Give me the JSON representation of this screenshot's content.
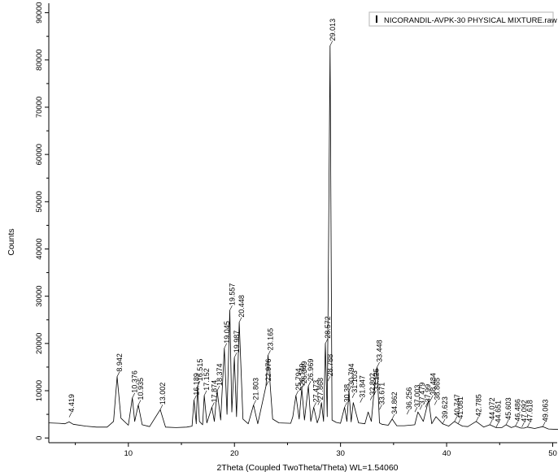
{
  "chart_data": {
    "type": "line",
    "title": "",
    "xlabel": "2Theta (Coupled TwoTheta/Theta) WL=1.54060",
    "ylabel": "Counts",
    "xlim": [
      2.5,
      50.5
    ],
    "ylim": [
      -1000,
      92000
    ],
    "xticks": [
      10,
      20,
      30,
      40,
      50
    ],
    "yticks": [
      0,
      10000,
      20000,
      30000,
      40000,
      50000,
      60000,
      70000,
      80000,
      90000
    ],
    "xtick_labels": [
      "10",
      "20",
      "30",
      "40",
      "50"
    ],
    "ytick_labels": [
      "0",
      "10000",
      "20000",
      "30000",
      "40000",
      "50000",
      "60000",
      "70000",
      "80000",
      "90000"
    ],
    "grid": false,
    "legend": {
      "position": "top-right",
      "entries": [
        "NICORANDIL-AVPK-30 PHYSICAL MIXTURE.raw"
      ]
    },
    "series": [
      {
        "name": "NICORANDIL-AVPK-30 PHYSICAL MIXTURE.raw",
        "x": [
          2.5,
          3.5,
          4.0,
          4.419,
          4.8,
          6.0,
          7.0,
          8.0,
          8.6,
          8.942,
          9.3,
          10.0,
          10.376,
          10.6,
          10.935,
          11.3,
          12.0,
          13.002,
          13.5,
          14.5,
          15.5,
          16.0,
          16.189,
          16.4,
          16.515,
          16.7,
          17.0,
          17.152,
          17.4,
          17.874,
          18.1,
          18.374,
          18.7,
          19.045,
          19.3,
          19.557,
          19.75,
          19.987,
          20.2,
          20.448,
          20.8,
          21.3,
          21.803,
          22.2,
          22.976,
          23.165,
          23.6,
          24.2,
          25.3,
          25.5,
          25.794,
          26.1,
          26.349,
          26.6,
          26.969,
          27.2,
          27.473,
          27.8,
          28.0,
          28.2,
          28.4,
          28.572,
          28.75,
          29.013,
          29.2,
          29.6,
          30.0,
          30.38,
          30.6,
          30.794,
          31.0,
          31.2,
          31.7,
          32.3,
          32.6,
          32.9,
          33.125,
          33.448,
          33.671,
          33.9,
          34.5,
          34.862,
          35.3,
          36.0,
          37.0,
          37.3,
          37.8,
          38.3,
          38.6,
          39.0,
          39.623,
          40.2,
          40.747,
          41.081,
          41.5,
          42.0,
          42.785,
          43.5,
          44.072,
          44.651,
          45.2,
          45.603,
          46.1,
          46.486,
          47.0,
          47.3,
          47.618,
          48.3,
          49.063,
          49.6,
          50.5
        ],
        "y": [
          3200,
          3100,
          3000,
          3400,
          2900,
          2500,
          2300,
          2300,
          3500,
          13000,
          4200,
          2700,
          8500,
          3500,
          7000,
          2800,
          2400,
          6000,
          2300,
          2200,
          2300,
          2500,
          8000,
          3000,
          11000,
          3500,
          2800,
          9000,
          3200,
          6500,
          3500,
          10000,
          3800,
          19000,
          5000,
          27000,
          5500,
          17000,
          4500,
          24500,
          4000,
          3000,
          7000,
          3000,
          11000,
          17500,
          4000,
          3200,
          3100,
          4500,
          9000,
          4000,
          10500,
          3800,
          11000,
          3500,
          6500,
          3200,
          4500,
          7500,
          3500,
          20000,
          4500,
          83000,
          3800,
          3300,
          3100,
          6500,
          3500,
          10000,
          3400,
          7500,
          3200,
          3000,
          5500,
          3500,
          9000,
          15000,
          3200,
          2900,
          2700,
          4000,
          2600,
          2600,
          2800,
          5500,
          3500,
          8000,
          3000,
          4500,
          3000,
          2500,
          3500,
          3000,
          2500,
          2400,
          3500,
          2300,
          2800,
          2200,
          2200,
          2800,
          2200,
          2500,
          2100,
          2100,
          2300,
          2000,
          2400,
          1900,
          1800
        ]
      }
    ],
    "annotations": [
      {
        "label": "4.419",
        "x": 4.419,
        "y": 4400
      },
      {
        "label": "8.942",
        "x": 8.942,
        "y": 13000
      },
      {
        "label": "10.376",
        "x": 10.376,
        "y": 8500
      },
      {
        "label": "10.935",
        "x": 10.935,
        "y": 7000
      },
      {
        "label": "13.002",
        "x": 13.002,
        "y": 6000
      },
      {
        "label": "16.189",
        "x": 16.189,
        "y": 8000
      },
      {
        "label": "16.515",
        "x": 16.515,
        "y": 11000
      },
      {
        "label": "17.152",
        "x": 17.152,
        "y": 9000
      },
      {
        "label": "17.874",
        "x": 17.874,
        "y": 6500
      },
      {
        "label": "18.374",
        "x": 18.374,
        "y": 10000
      },
      {
        "label": "19.045",
        "x": 19.045,
        "y": 19000
      },
      {
        "label": "19.557",
        "x": 19.557,
        "y": 27000
      },
      {
        "label": "19.987",
        "x": 19.987,
        "y": 17000
      },
      {
        "label": "20.448",
        "x": 20.448,
        "y": 24500
      },
      {
        "label": "21.803",
        "x": 21.803,
        "y": 7000
      },
      {
        "label": "22.976",
        "x": 22.976,
        "y": 11000
      },
      {
        "label": "23.165",
        "x": 23.165,
        "y": 17500
      },
      {
        "label": "25.794",
        "x": 25.794,
        "y": 9000
      },
      {
        "label": "26.149",
        "x": 26.149,
        "y": 10000
      },
      {
        "label": "26.349",
        "x": 26.349,
        "y": 10500
      },
      {
        "label": "26.969",
        "x": 26.969,
        "y": 11000
      },
      {
        "label": "27.473",
        "x": 27.473,
        "y": 6500
      },
      {
        "label": "27.868",
        "x": 27.868,
        "y": 7000
      },
      {
        "label": "28.572",
        "x": 28.572,
        "y": 20000
      },
      {
        "label": "28.788",
        "x": 28.788,
        "y": 12000
      },
      {
        "label": "29.013",
        "x": 29.013,
        "y": 83000
      },
      {
        "label": "30.38",
        "x": 30.38,
        "y": 6500
      },
      {
        "label": "30.794",
        "x": 30.794,
        "y": 10000
      },
      {
        "label": "31.103",
        "x": 31.103,
        "y": 8500
      },
      {
        "label": "31.847",
        "x": 31.847,
        "y": 7500
      },
      {
        "label": "32.802",
        "x": 32.802,
        "y": 8000
      },
      {
        "label": "33.125",
        "x": 33.125,
        "y": 9000
      },
      {
        "label": "33.448",
        "x": 33.448,
        "y": 15000
      },
      {
        "label": "33.671",
        "x": 33.671,
        "y": 6000
      },
      {
        "label": "34.862",
        "x": 34.862,
        "y": 4000
      },
      {
        "label": "36.256",
        "x": 36.256,
        "y": 5000
      },
      {
        "label": "37.003",
        "x": 37.003,
        "y": 5500
      },
      {
        "label": "37.479",
        "x": 37.479,
        "y": 6000
      },
      {
        "label": "37.99",
        "x": 37.99,
        "y": 6500
      },
      {
        "label": "38.484",
        "x": 38.484,
        "y": 8000
      },
      {
        "label": "38.865",
        "x": 38.865,
        "y": 7000
      },
      {
        "label": "39.623",
        "x": 39.623,
        "y": 3000
      },
      {
        "label": "40.747",
        "x": 40.747,
        "y": 3500
      },
      {
        "label": "41.081",
        "x": 41.081,
        "y": 3000
      },
      {
        "label": "42.785",
        "x": 42.785,
        "y": 3500
      },
      {
        "label": "44.072",
        "x": 44.072,
        "y": 2800
      },
      {
        "label": "44.651",
        "x": 44.651,
        "y": 2200
      },
      {
        "label": "45.603",
        "x": 45.603,
        "y": 2800
      },
      {
        "label": "46.486",
        "x": 46.486,
        "y": 2500
      },
      {
        "label": "47.092",
        "x": 47.092,
        "y": 2300
      },
      {
        "label": "47.618",
        "x": 47.618,
        "y": 2300
      },
      {
        "label": "49.063",
        "x": 49.063,
        "y": 2400
      }
    ]
  }
}
